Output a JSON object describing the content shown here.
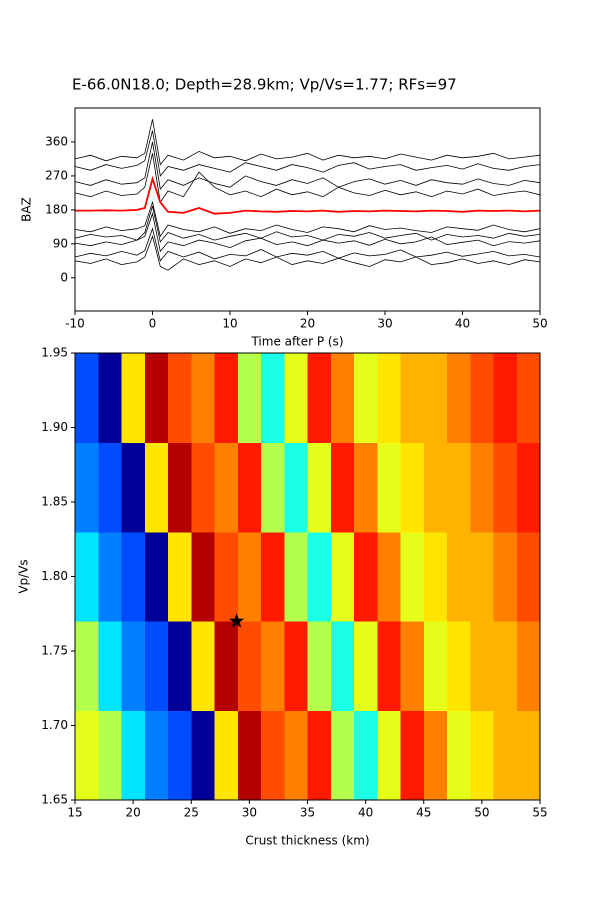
{
  "chart_data": [
    {
      "type": "line",
      "title": "E-66.0N18.0; Depth=28.9km; Vp/Vs=1.77; RFs=97",
      "xlabel": "Time after P (s)",
      "ylabel": "BAZ",
      "xlim": [
        -10,
        50
      ],
      "ylim": [
        -88,
        450
      ],
      "xticks": [
        -10,
        0,
        10,
        20,
        30,
        40,
        50
      ],
      "yticks": [
        0,
        90,
        180,
        270,
        360
      ],
      "x": [
        -10,
        -8,
        -6,
        -4,
        -2,
        -1,
        0,
        1,
        2,
        4,
        6,
        8,
        10,
        12,
        14,
        16,
        18,
        20,
        22,
        24,
        26,
        28,
        30,
        32,
        34,
        36,
        38,
        40,
        42,
        44,
        46,
        48,
        50
      ],
      "series": [
        {
          "color": "#000000",
          "values": [
            45,
            38,
            50,
            35,
            42,
            55,
            110,
            30,
            20,
            50,
            35,
            45,
            30,
            50,
            40,
            55,
            35,
            45,
            38,
            52,
            40,
            30,
            48,
            42,
            55,
            35,
            40,
            50,
            38,
            45,
            35,
            48,
            42
          ]
        },
        {
          "color": "#000000",
          "values": [
            55,
            65,
            58,
            70,
            60,
            72,
            130,
            45,
            70,
            55,
            68,
            50,
            62,
            58,
            75,
            55,
            65,
            60,
            70,
            52,
            66,
            58,
            62,
            74,
            55,
            60,
            68,
            57,
            63,
            70,
            58,
            62,
            55
          ]
        },
        {
          "color": "#000000",
          "values": [
            92,
            85,
            95,
            88,
            100,
            110,
            170,
            70,
            95,
            85,
            100,
            92,
            80,
            98,
            105,
            88,
            95,
            85,
            100,
            92,
            98,
            86,
            102,
            90,
            95,
            108,
            88,
            94,
            100,
            85,
            96,
            92,
            98
          ]
        },
        {
          "color": "#000000",
          "values": [
            105,
            115,
            108,
            112,
            100,
            120,
            190,
            95,
            120,
            105,
            115,
            100,
            110,
            118,
            105,
            122,
            108,
            112,
            100,
            115,
            110,
            120,
            105,
            112,
            118,
            100,
            115,
            108,
            112,
            105,
            118,
            110,
            115
          ]
        },
        {
          "color": "#000000",
          "values": [
            128,
            122,
            135,
            125,
            130,
            138,
            200,
            110,
            140,
            128,
            122,
            135,
            118,
            130,
            125,
            140,
            128,
            120,
            135,
            130,
            122,
            138,
            128,
            132,
            125,
            120,
            135,
            130,
            126,
            140,
            128,
            122,
            130
          ]
        },
        {
          "color": "#000000",
          "values": [
            225,
            215,
            230,
            218,
            222,
            240,
            330,
            200,
            230,
            215,
            280,
            240,
            220,
            230,
            215,
            235,
            220,
            228,
            215,
            240,
            225,
            218,
            232,
            220,
            228,
            215,
            230,
            222,
            235,
            218,
            225,
            230,
            220
          ]
        },
        {
          "color": "#000000",
          "values": [
            255,
            245,
            260,
            248,
            252,
            265,
            360,
            235,
            260,
            245,
            265,
            250,
            240,
            270,
            255,
            245,
            260,
            250,
            265,
            240,
            255,
            262,
            248,
            258,
            245,
            260,
            252,
            248,
            262,
            250,
            245,
            258,
            252
          ]
        },
        {
          "color": "#000000",
          "values": [
            295,
            285,
            300,
            290,
            298,
            310,
            390,
            270,
            295,
            285,
            300,
            290,
            280,
            305,
            295,
            285,
            300,
            292,
            280,
            298,
            305,
            288,
            295,
            300,
            285,
            292,
            298,
            288,
            302,
            290,
            285,
            295,
            300
          ]
        },
        {
          "color": "#000000",
          "values": [
            315,
            325,
            310,
            322,
            318,
            330,
            420,
            300,
            325,
            312,
            335,
            318,
            322,
            310,
            328,
            315,
            320,
            330,
            312,
            325,
            318,
            322,
            315,
            328,
            320,
            312,
            325,
            318,
            322,
            330,
            315,
            320,
            325
          ]
        },
        {
          "color": "#ff0000",
          "values": [
            178,
            178,
            179,
            178,
            180,
            185,
            262,
            200,
            175,
            172,
            185,
            170,
            172,
            178,
            176,
            175,
            177,
            176,
            178,
            175,
            177,
            176,
            178,
            177,
            176,
            178,
            177,
            175,
            178,
            177,
            178,
            176,
            178
          ]
        }
      ]
    },
    {
      "type": "heatmap",
      "xlabel": "Crust thickness (km)",
      "ylabel": "Vp/Vs",
      "xlim": [
        15,
        55
      ],
      "ylim": [
        1.65,
        1.95
      ],
      "xticks": [
        15,
        20,
        25,
        30,
        35,
        40,
        45,
        50,
        55
      ],
      "yticks": [
        1.65,
        {
          "value": 1.7,
          "label": "1.70"
        },
        1.75,
        {
          "value": 1.8,
          "label": "1.80"
        },
        1.85,
        {
          "value": 1.9,
          "label": "1.90"
        },
        1.95
      ],
      "x": [
        16,
        18,
        20,
        22,
        24,
        26,
        28,
        30,
        32,
        34,
        36,
        38,
        40,
        42,
        44,
        46,
        48,
        50,
        52,
        54
      ],
      "y": [
        1.665,
        1.695,
        1.725,
        1.755,
        1.785,
        1.815,
        1.845,
        1.875,
        1.905,
        1.935
      ],
      "zlim": [
        -1,
        1
      ],
      "z": [
        [
          0.2,
          0.1,
          -0.3,
          -0.5,
          -0.6,
          -0.95,
          0.3,
          0.9,
          0.6,
          0.5,
          0.7,
          0.1,
          -0.2,
          0.2,
          0.7,
          0.5,
          0.2,
          0.3,
          0.4,
          0.4
        ],
        [
          0.2,
          0.1,
          -0.3,
          -0.5,
          -0.6,
          -0.95,
          0.3,
          0.9,
          0.6,
          0.5,
          0.7,
          0.1,
          -0.2,
          0.2,
          0.7,
          0.5,
          0.2,
          0.3,
          0.4,
          0.4
        ],
        [
          0.1,
          -0.3,
          -0.5,
          -0.6,
          -0.95,
          0.3,
          0.9,
          0.6,
          0.5,
          0.7,
          0.1,
          -0.2,
          0.2,
          0.7,
          0.5,
          0.2,
          0.3,
          0.4,
          0.4,
          0.5
        ],
        [
          0.1,
          -0.3,
          -0.5,
          -0.6,
          -0.95,
          0.3,
          0.9,
          0.6,
          0.5,
          0.7,
          0.1,
          -0.2,
          0.2,
          0.7,
          0.5,
          0.2,
          0.3,
          0.4,
          0.4,
          0.5
        ],
        [
          -0.3,
          -0.5,
          -0.6,
          -0.95,
          0.3,
          0.9,
          0.6,
          0.5,
          0.7,
          0.1,
          -0.2,
          0.2,
          0.7,
          0.5,
          0.2,
          0.3,
          0.4,
          0.4,
          0.5,
          0.6
        ],
        [
          -0.3,
          -0.5,
          -0.6,
          -0.95,
          0.3,
          0.9,
          0.6,
          0.5,
          0.7,
          0.1,
          -0.2,
          0.2,
          0.7,
          0.5,
          0.2,
          0.3,
          0.4,
          0.4,
          0.5,
          0.6
        ],
        [
          -0.5,
          -0.6,
          -0.95,
          0.3,
          0.9,
          0.6,
          0.5,
          0.7,
          0.1,
          -0.2,
          0.2,
          0.7,
          0.5,
          0.2,
          0.3,
          0.4,
          0.4,
          0.5,
          0.6,
          0.7
        ],
        [
          -0.5,
          -0.6,
          -0.95,
          0.3,
          0.9,
          0.6,
          0.5,
          0.7,
          0.1,
          -0.2,
          0.2,
          0.7,
          0.5,
          0.2,
          0.3,
          0.4,
          0.4,
          0.5,
          0.6,
          0.7
        ],
        [
          -0.6,
          -0.95,
          0.3,
          0.9,
          0.6,
          0.5,
          0.7,
          0.1,
          -0.2,
          0.2,
          0.7,
          0.5,
          0.2,
          0.3,
          0.4,
          0.4,
          0.5,
          0.6,
          0.7,
          0.6
        ],
        [
          -0.6,
          -0.95,
          0.3,
          0.9,
          0.6,
          0.5,
          0.7,
          0.1,
          -0.2,
          0.2,
          0.7,
          0.5,
          0.2,
          0.3,
          0.4,
          0.4,
          0.5,
          0.6,
          0.7,
          0.6
        ]
      ],
      "best": {
        "x": 28.9,
        "y": 1.77
      }
    }
  ]
}
